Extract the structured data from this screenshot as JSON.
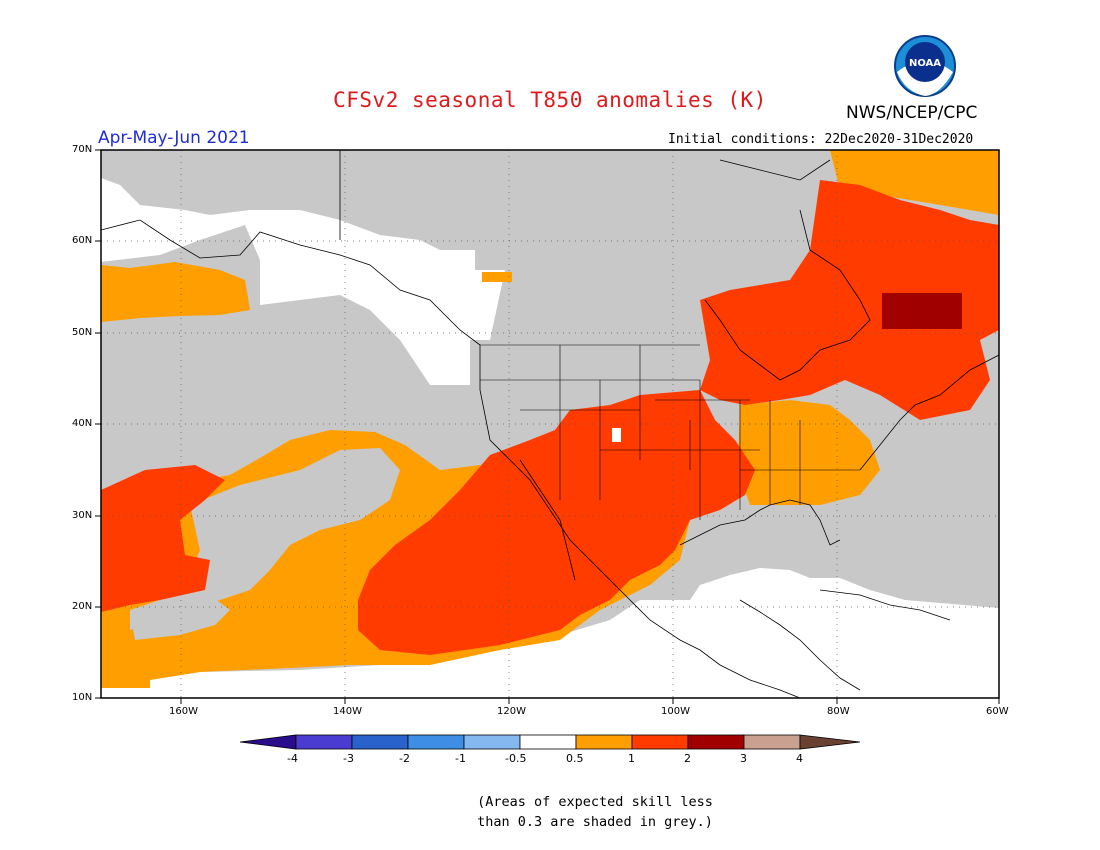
{
  "header": {
    "title": "CFSv2 seasonal T850 anomalies (K)",
    "agency": "NWS/NCEP/CPC",
    "logo_text": "NOAA",
    "season": "Apr-May-Jun 2021",
    "initial_conditions": "Initial conditions: 22Dec2020-31Dec2020"
  },
  "axes": {
    "lat_labels": [
      "70N",
      "60N",
      "50N",
      "40N",
      "30N",
      "20N",
      "10N"
    ],
    "lon_labels": [
      "160W",
      "140W",
      "120W",
      "100W",
      "80W",
      "60W"
    ]
  },
  "colorbar": {
    "labels": [
      "-4",
      "-3",
      "-2",
      "-1",
      "-0.5",
      "0.5",
      "1",
      "2",
      "3",
      "4"
    ],
    "colors": [
      "#2a0d8c",
      "#4a3cd0",
      "#2a62cc",
      "#3f8ee6",
      "#86b8f0",
      "#ffffff",
      "#ff9e00",
      "#ff3b00",
      "#a00000",
      "#caa090",
      "#6a4030"
    ]
  },
  "palette": {
    "grey": "#c8c8c8",
    "orange": "#ff9e00",
    "red": "#ff3b00",
    "dark_red": "#a00000",
    "white": "#ffffff"
  },
  "footnote": {
    "line1": "(Areas of expected skill less",
    "line2": "than 0.3 are shaded in grey.)"
  }
}
